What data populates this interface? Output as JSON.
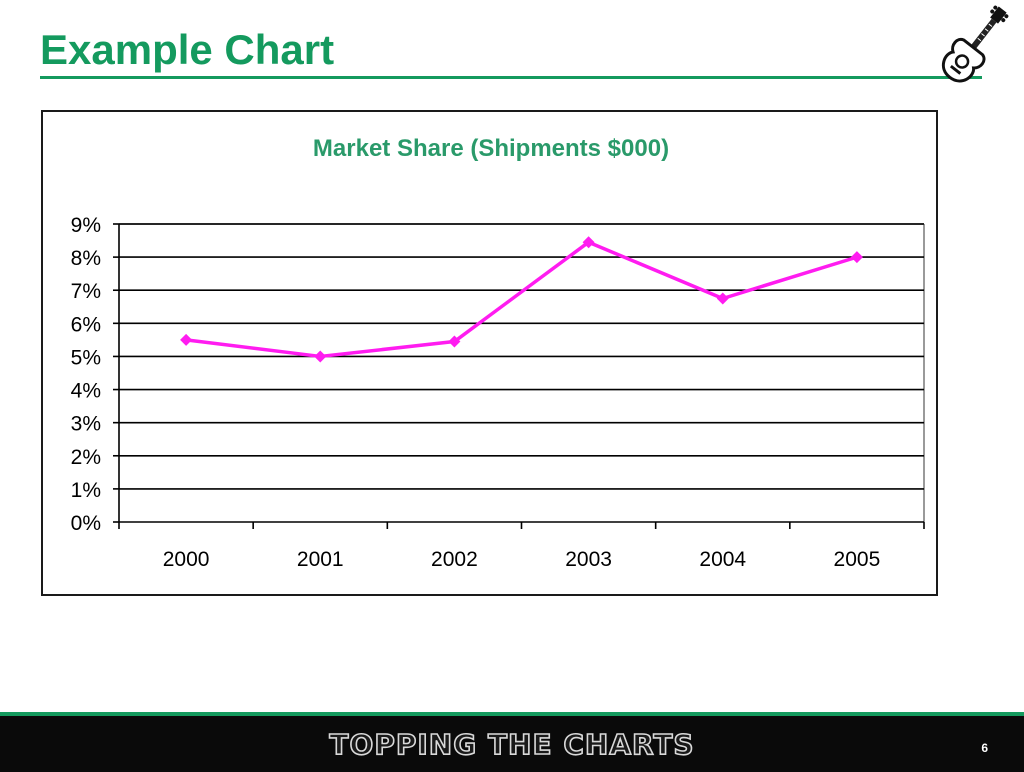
{
  "slide": {
    "title": "Example Chart",
    "footer_logo_text": "TOPPING THE CHARTS",
    "page_number": "6",
    "accent_color": "#149a5e",
    "logo_icon": "guitar-icon"
  },
  "chart_data": {
    "type": "line",
    "title": "Market Share (Shipments $000)",
    "xlabel": "",
    "ylabel": "",
    "categories": [
      "2000",
      "2001",
      "2002",
      "2003",
      "2004",
      "2005"
    ],
    "series": [
      {
        "values": [
          5.5,
          5.0,
          5.45,
          8.45,
          6.75,
          8.0
        ],
        "color": "#ff1cf0"
      }
    ],
    "ylim": [
      0,
      9
    ],
    "ytick_step": 1,
    "ytick_suffix": "%",
    "grid": true,
    "legend": "none",
    "title_color": "#2a9a6a"
  }
}
